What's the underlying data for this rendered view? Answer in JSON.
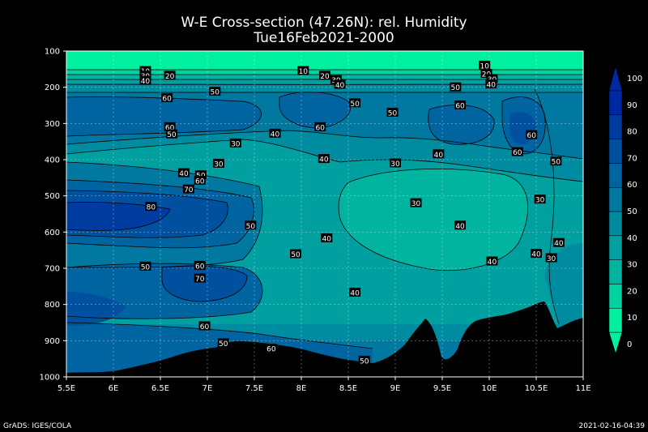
{
  "chart_data": {
    "type": "contour",
    "title": "W-E Cross-section (47.26N): rel. Humidity",
    "subtitle": "Tue16Feb2021-2000",
    "x_ticks": [
      "5.5E",
      "6E",
      "6.5E",
      "7E",
      "7.5E",
      "8E",
      "8.5E",
      "9E",
      "9.5E",
      "10E",
      "10.5E",
      "11E"
    ],
    "y_ticks": [
      "100",
      "200",
      "300",
      "400",
      "500",
      "600",
      "700",
      "800",
      "900",
      "1000"
    ],
    "x_range": [
      5.5,
      11.0
    ],
    "y_range": [
      100,
      1000
    ],
    "y_inverted": true,
    "grid": true,
    "colorbar": {
      "levels": [
        "0",
        "10",
        "20",
        "30",
        "40",
        "50",
        "60",
        "70",
        "80",
        "90",
        "100"
      ],
      "colors": [
        "#00f0a0",
        "#00d2a0",
        "#00b4a0",
        "#00a0a0",
        "#008ca0",
        "#0078a0",
        "#0064a0",
        "#0050a0",
        "#003ca0",
        "#0028a0"
      ]
    },
    "contour_labels": [
      {
        "text": "10",
        "x": 6.34,
        "y": 155
      },
      {
        "text": "10",
        "x": 8.02,
        "y": 155
      },
      {
        "text": "10",
        "x": 9.95,
        "y": 140
      },
      {
        "text": "20",
        "x": 6.6,
        "y": 168
      },
      {
        "text": "20",
        "x": 8.25,
        "y": 168
      },
      {
        "text": "20",
        "x": 9.97,
        "y": 163
      },
      {
        "text": "30",
        "x": 6.34,
        "y": 168
      },
      {
        "text": "30",
        "x": 8.37,
        "y": 180
      },
      {
        "text": "30",
        "x": 10.03,
        "y": 177
      },
      {
        "text": "40",
        "x": 6.34,
        "y": 182
      },
      {
        "text": "40",
        "x": 8.41,
        "y": 193
      },
      {
        "text": "40",
        "x": 10.02,
        "y": 192
      },
      {
        "text": "50",
        "x": 7.08,
        "y": 212
      },
      {
        "text": "50",
        "x": 9.64,
        "y": 200
      },
      {
        "text": "60",
        "x": 6.57,
        "y": 230
      },
      {
        "text": "50",
        "x": 8.57,
        "y": 244
      },
      {
        "text": "60",
        "x": 9.69,
        "y": 250
      },
      {
        "text": "50",
        "x": 8.97,
        "y": 270
      },
      {
        "text": "60",
        "x": 6.6,
        "y": 310
      },
      {
        "text": "60",
        "x": 8.2,
        "y": 310
      },
      {
        "text": "50",
        "x": 6.62,
        "y": 330
      },
      {
        "text": "40",
        "x": 7.72,
        "y": 328
      },
      {
        "text": "60",
        "x": 10.45,
        "y": 332
      },
      {
        "text": "30",
        "x": 7.3,
        "y": 355
      },
      {
        "text": "60",
        "x": 10.3,
        "y": 379
      },
      {
        "text": "40",
        "x": 9.46,
        "y": 385
      },
      {
        "text": "40",
        "x": 8.24,
        "y": 398
      },
      {
        "text": "50",
        "x": 10.71,
        "y": 405
      },
      {
        "text": "30",
        "x": 7.12,
        "y": 411
      },
      {
        "text": "30",
        "x": 9.0,
        "y": 410
      },
      {
        "text": "40",
        "x": 6.75,
        "y": 437
      },
      {
        "text": "50",
        "x": 6.93,
        "y": 443
      },
      {
        "text": "60",
        "x": 6.92,
        "y": 458
      },
      {
        "text": "70",
        "x": 6.8,
        "y": 482
      },
      {
        "text": "80",
        "x": 6.4,
        "y": 530
      },
      {
        "text": "30",
        "x": 9.22,
        "y": 520
      },
      {
        "text": "30",
        "x": 10.54,
        "y": 510
      },
      {
        "text": "50",
        "x": 7.46,
        "y": 582
      },
      {
        "text": "40",
        "x": 9.69,
        "y": 582
      },
      {
        "text": "40",
        "x": 8.27,
        "y": 617
      },
      {
        "text": "40",
        "x": 10.74,
        "y": 630
      },
      {
        "text": "50",
        "x": 7.94,
        "y": 661
      },
      {
        "text": "40",
        "x": 10.5,
        "y": 660
      },
      {
        "text": "30",
        "x": 10.66,
        "y": 672
      },
      {
        "text": "40",
        "x": 10.03,
        "y": 681
      },
      {
        "text": "50",
        "x": 6.34,
        "y": 695
      },
      {
        "text": "60",
        "x": 6.92,
        "y": 693
      },
      {
        "text": "70",
        "x": 6.92,
        "y": 728
      },
      {
        "text": "40",
        "x": 8.57,
        "y": 767
      },
      {
        "text": "60",
        "x": 6.97,
        "y": 860
      },
      {
        "text": "50",
        "x": 7.17,
        "y": 907
      },
      {
        "text": "60",
        "x": 7.68,
        "y": 922
      },
      {
        "text": "50",
        "x": 8.67,
        "y": 955
      }
    ]
  },
  "footer": {
    "left": "GrADS: IGES/COLA",
    "right": "2021-02-16-04:39"
  }
}
